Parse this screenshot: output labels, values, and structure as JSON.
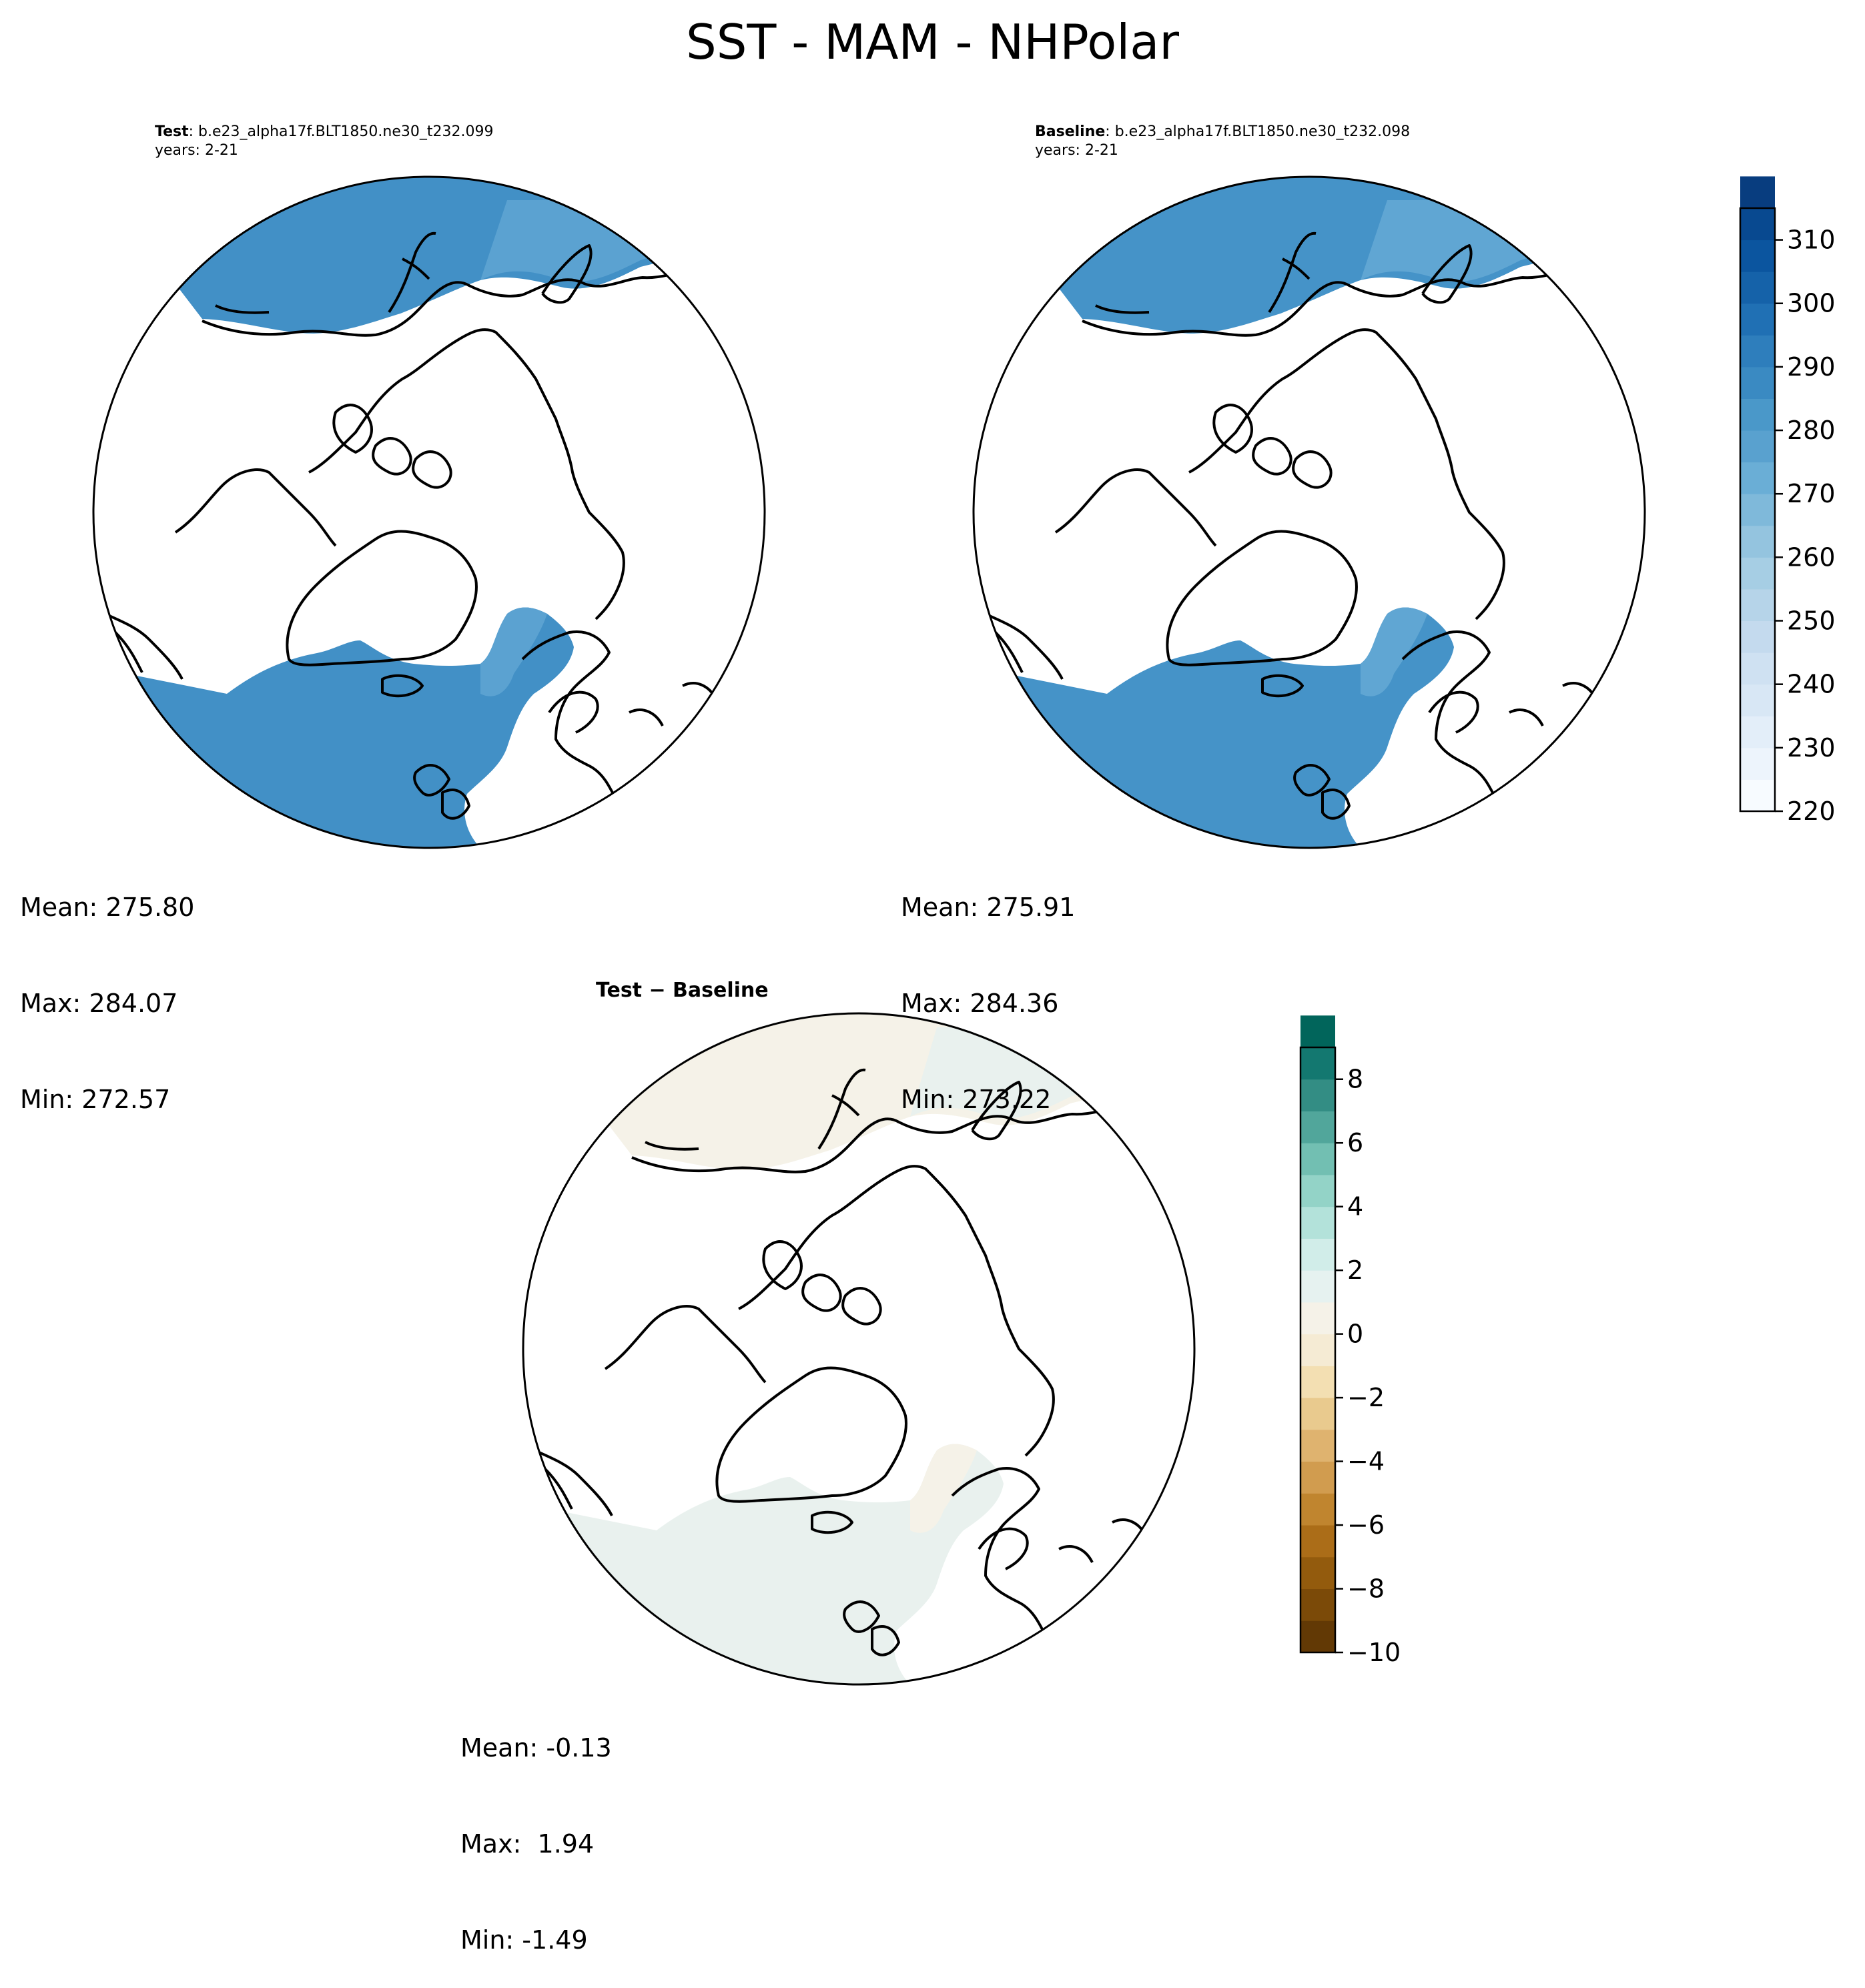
{
  "figure": {
    "title": "SST - MAM - NHPolar"
  },
  "panels": {
    "test": {
      "title_bold": "Test",
      "title_rest": ": b.e23_alpha17f.BLT1850.ne30_t232.099",
      "years": "years: 2-21",
      "stats": {
        "mean": "Mean: 275.80",
        "max": "Max: 284.07",
        "min": "Min: 272.57"
      }
    },
    "baseline": {
      "title_bold": "Baseline",
      "title_rest": ": b.e23_alpha17f.BLT1850.ne30_t232.098",
      "years": "years: 2-21",
      "stats": {
        "mean": "Mean: 275.91",
        "max": "Max: 284.36",
        "min": "Min: 273.22"
      }
    },
    "diff": {
      "title": "Test − Baseline",
      "stats": {
        "mean": "Mean: -0.13",
        "max": "Max:  1.94",
        "min": "Min: -1.49"
      }
    }
  },
  "colorbars": {
    "absolute": {
      "colormap": "Blues",
      "min": 220,
      "max": 315,
      "step": 5,
      "ticks": [
        "220",
        "230",
        "240",
        "250",
        "260",
        "270",
        "280",
        "290",
        "300",
        "310"
      ],
      "colors": [
        "#f7fbff",
        "#edf4fc",
        "#e3eef9",
        "#d8e7f5",
        "#cfe1f2",
        "#c4daee",
        "#b6d4e9",
        "#a6cee4",
        "#94c4df",
        "#7fb9da",
        "#6aaed6",
        "#59a1cf",
        "#4a98c9",
        "#3a8ac2",
        "#2e7ebc",
        "#2070b4",
        "#1562a9",
        "#0b559f",
        "#084990",
        "#083d7f"
      ]
    },
    "difference": {
      "colormap": "BrBG",
      "min": -10,
      "max": 9,
      "step": 1,
      "ticks": [
        "−10",
        "−8",
        "−6",
        "−4",
        "−2",
        "0",
        "2",
        "4",
        "6",
        "8"
      ],
      "colors": [
        "#623905",
        "#7b4a08",
        "#935b0d",
        "#ab6d18",
        "#c0852f",
        "#d19c4f",
        "#dfb36f",
        "#e9ca8e",
        "#f3dfb2",
        "#f5ebd4",
        "#f5f2e8",
        "#e6f2f0",
        "#d1ede9",
        "#b3e2da",
        "#93d3c7",
        "#72bfb2",
        "#51a69b",
        "#338d84",
        "#137870",
        "#01655b"
      ]
    }
  },
  "map": {
    "projection": "North Polar Stereographic",
    "ocean_colors": {
      "test_main": "#4290c6",
      "test_light": "#5ba2d1",
      "baseline_main": "#4593c8",
      "baseline_light": "#60a6d3",
      "diff_warm": "#f5f2e8",
      "diff_cool": "#e9f1ee"
    },
    "land_color": "#ffffff",
    "coast_color": "#000000"
  }
}
